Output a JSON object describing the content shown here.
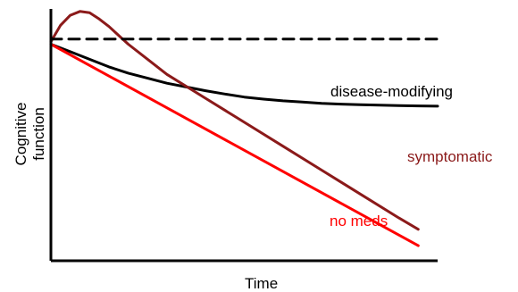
{
  "chart_data": {
    "type": "line",
    "xlabel": "Time",
    "ylabel_lines": [
      "Cognitive",
      "function"
    ],
    "xlim": [
      0,
      10
    ],
    "ylim": [
      0,
      10
    ],
    "grid": false,
    "colors": {
      "axes": "#000000",
      "baseline": "#000000",
      "disease_modifying": "#000000",
      "symptomatic": "#8b1a1a",
      "no_meds": "#ff0000"
    },
    "series": [
      {
        "name": "disease-modifying",
        "color": "#000000",
        "dash": false,
        "x": [
          0,
          0.5,
          1,
          1.5,
          2,
          2.5,
          3,
          3.5,
          4,
          4.5,
          5,
          5.5,
          6,
          6.5,
          7,
          7.5,
          8,
          8.5,
          9,
          9.5,
          10
        ],
        "y": [
          8.6,
          8.3,
          8.0,
          7.7,
          7.45,
          7.25,
          7.05,
          6.9,
          6.75,
          6.62,
          6.5,
          6.42,
          6.35,
          6.3,
          6.25,
          6.22,
          6.2,
          6.18,
          6.16,
          6.15,
          6.14
        ]
      },
      {
        "name": "symptomatic",
        "color": "#8b1a1a",
        "dash": false,
        "x": [
          0,
          0.25,
          0.5,
          0.75,
          1.0,
          1.25,
          1.5,
          1.75,
          2.0,
          2.5,
          3,
          4,
          5,
          6,
          7,
          8,
          9,
          9.5
        ],
        "y": [
          8.7,
          9.35,
          9.75,
          9.9,
          9.85,
          9.6,
          9.3,
          8.95,
          8.6,
          8.0,
          7.4,
          6.45,
          5.5,
          4.55,
          3.6,
          2.65,
          1.7,
          1.25
        ]
      },
      {
        "name": "no meds",
        "color": "#ff0000",
        "dash": false,
        "x": [
          0,
          9.5
        ],
        "y": [
          8.6,
          0.6
        ]
      },
      {
        "name": "",
        "color": "#000000",
        "dash": true,
        "x": [
          0,
          10
        ],
        "y": [
          8.8,
          8.8
        ]
      }
    ]
  }
}
